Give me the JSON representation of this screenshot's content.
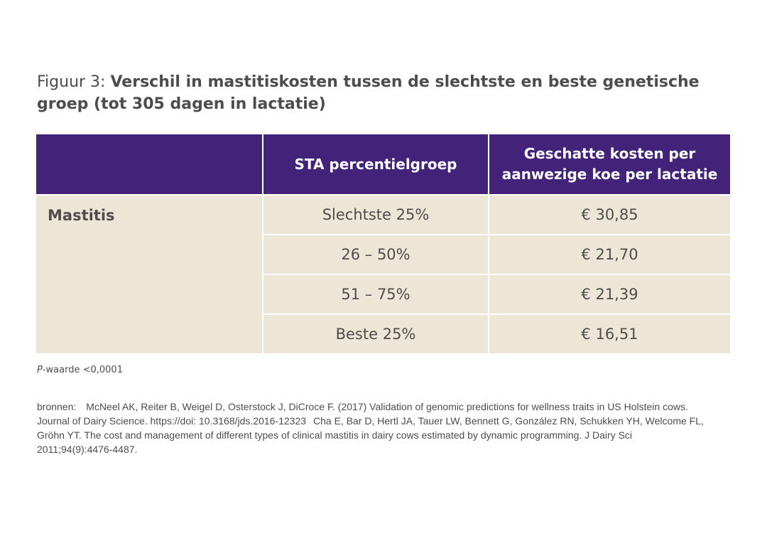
{
  "figure": {
    "title_prefix": "Figuur 3: ",
    "title_main": "Verschil in mastitiskosten tussen de slechtste en beste genetische groep (tot 305 dagen in lactatie)"
  },
  "table": {
    "headers": [
      "",
      "STA percentielgroep",
      "Geschatte kosten per aanwezige koe per lactatie"
    ],
    "row_label": "Mastitis",
    "rows": [
      {
        "group": "Slechtste 25%",
        "cost": "€ 30,85"
      },
      {
        "group": "26 – 50%",
        "cost": "€ 21,70"
      },
      {
        "group": "51 – 75%",
        "cost": "€ 21,39"
      },
      {
        "group": "Beste 25%",
        "cost": "€ 16,51"
      }
    ]
  },
  "note": {
    "p_letter": "P",
    "p_text": "-waarde <0,0001"
  },
  "sources": {
    "label": "bronnen:",
    "ref1": "McNeel AK, Reiter B, Weigel D, Osterstock J, DiCroce F. (2017) Validation of genomic predictions for wellness traits in US Holstein cows. Journal of Dairy Science. https://doi: 10.3168/jds.2016-12323",
    "ref2": "Cha E, Bar D, Hertl JA, Tauer LW, Bennett G, González RN, Schukken YH, Welcome FL, Gröhn YT. The cost and management of different types of clinical mastitis in dairy cows estimated by dynamic programming. J Dairy Sci 2011;94(9):4476-4487."
  },
  "colors": {
    "header_bg": "#43237a",
    "cell_bg": "#ede5d6",
    "text": "#4d4d4d"
  }
}
